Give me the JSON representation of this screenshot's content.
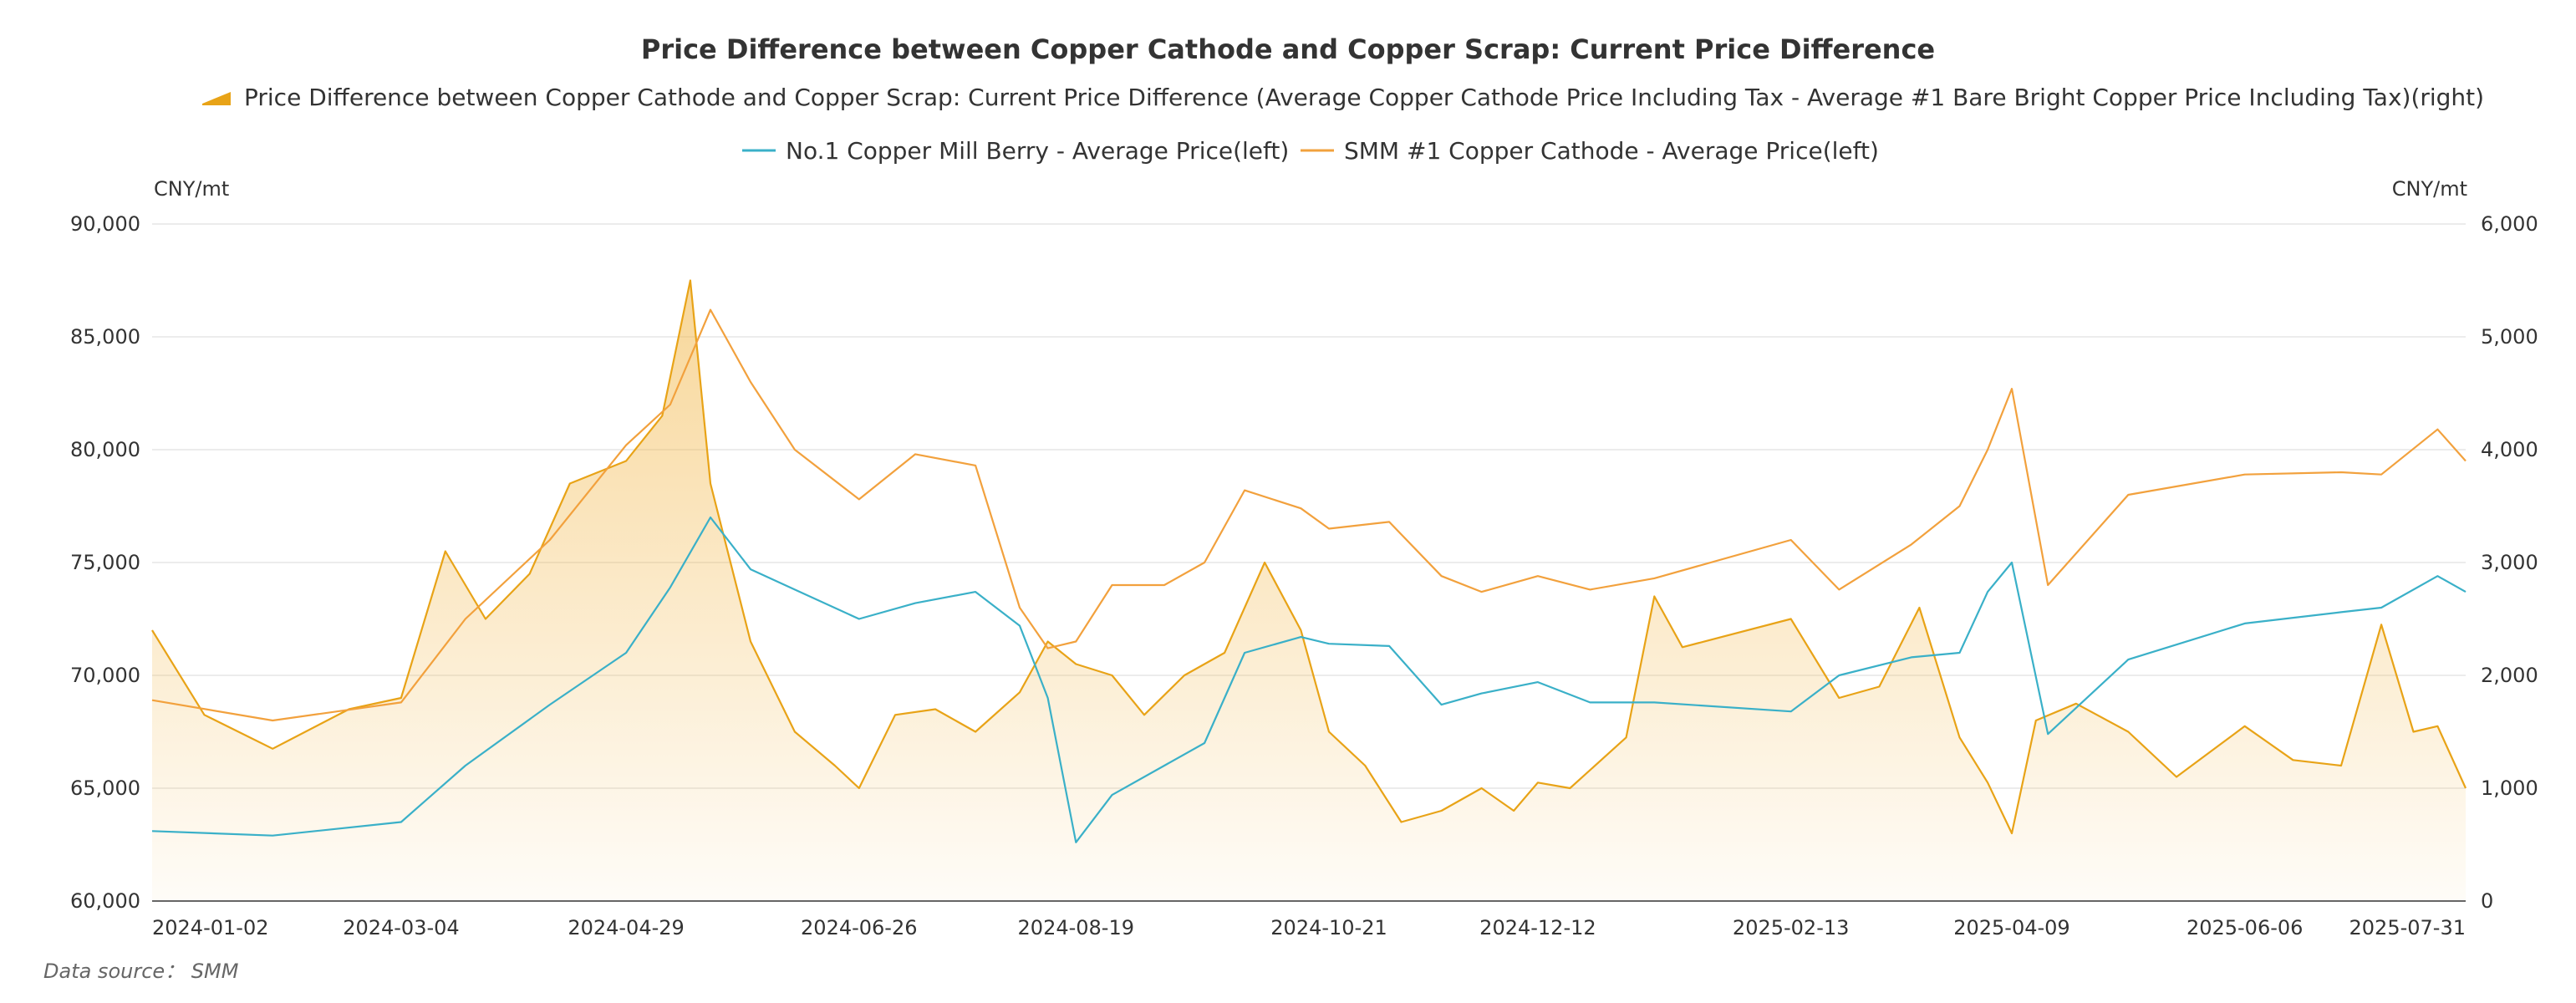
{
  "chart_data": {
    "type": "line",
    "title": "Price Difference between Copper Cathode and Copper Scrap: Current Price Difference",
    "left_axis": {
      "unit": "CNY/mt",
      "ylim": [
        60000,
        90000
      ],
      "ticks": [
        "60,000",
        "65,000",
        "70,000",
        "75,000",
        "80,000",
        "85,000",
        "90,000"
      ]
    },
    "right_axis": {
      "unit": "CNY/mt",
      "ylim": [
        0,
        6000
      ],
      "ticks": [
        "0",
        "1,000",
        "2,000",
        "3,000",
        "4,000",
        "5,000",
        "6,000"
      ]
    },
    "x_tick_labels": [
      "2024-01-02",
      "2024-03-04",
      "2024-04-29",
      "2024-06-26",
      "2024-08-19",
      "2024-10-21",
      "2024-12-12",
      "2025-02-13",
      "2025-04-09",
      "2025-06-06",
      "2025-07-31"
    ],
    "grid": true,
    "legend_position": "top",
    "source": "Data source： SMM",
    "series": [
      {
        "name": "Price Difference between Copper Cathode and Copper Scrap: Current Price Difference (Average Copper Cathode Price Including Tax - Average #1 Bare Bright Copper Price Including Tax)(right)",
        "axis": "right",
        "style": "area",
        "color": "#e8a317",
        "x": [
          "2024-01-02",
          "2024-01-15",
          "2024-02-01",
          "2024-02-20",
          "2024-03-04",
          "2024-03-15",
          "2024-03-25",
          "2024-04-05",
          "2024-04-15",
          "2024-04-29",
          "2024-05-08",
          "2024-05-15",
          "2024-05-20",
          "2024-05-30",
          "2024-06-10",
          "2024-06-20",
          "2024-06-26",
          "2024-07-05",
          "2024-07-15",
          "2024-07-25",
          "2024-08-05",
          "2024-08-12",
          "2024-08-19",
          "2024-08-28",
          "2024-09-05",
          "2024-09-15",
          "2024-09-25",
          "2024-10-05",
          "2024-10-14",
          "2024-10-21",
          "2024-10-30",
          "2024-11-08",
          "2024-11-18",
          "2024-11-28",
          "2024-12-06",
          "2024-12-12",
          "2024-12-20",
          "2025-01-03",
          "2025-01-10",
          "2025-01-17",
          "2025-02-13",
          "2025-02-25",
          "2025-03-07",
          "2025-03-17",
          "2025-03-27",
          "2025-04-03",
          "2025-04-09",
          "2025-04-15",
          "2025-04-25",
          "2025-05-08",
          "2025-05-20",
          "2025-06-06",
          "2025-06-18",
          "2025-06-30",
          "2025-07-10",
          "2025-07-18",
          "2025-07-24",
          "2025-07-31"
        ],
        "values": [
          2400,
          1650,
          1350,
          1700,
          1800,
          3100,
          2500,
          2900,
          3700,
          3900,
          4300,
          5500,
          3700,
          2300,
          1500,
          1200,
          1000,
          1650,
          1700,
          1500,
          1850,
          2300,
          2100,
          2000,
          1650,
          2000,
          2200,
          3000,
          2400,
          1500,
          1200,
          700,
          800,
          1000,
          800,
          1050,
          1000,
          1450,
          2700,
          2250,
          2500,
          1800,
          1900,
          2600,
          1450,
          1050,
          600,
          1600,
          1750,
          1500,
          1100,
          1550,
          1250,
          1200,
          2450,
          1500,
          1550,
          1000
        ]
      },
      {
        "name": "No.1 Copper Mill Berry - Average Price(left)",
        "axis": "left",
        "style": "line",
        "color": "#3ab0c8",
        "x": [
          "2024-01-02",
          "2024-02-01",
          "2024-03-04",
          "2024-03-20",
          "2024-04-10",
          "2024-04-29",
          "2024-05-10",
          "2024-05-20",
          "2024-05-30",
          "2024-06-10",
          "2024-06-26",
          "2024-07-10",
          "2024-07-25",
          "2024-08-05",
          "2024-08-12",
          "2024-08-19",
          "2024-08-28",
          "2024-09-10",
          "2024-09-20",
          "2024-09-30",
          "2024-10-14",
          "2024-10-21",
          "2024-11-05",
          "2024-11-18",
          "2024-11-28",
          "2024-12-12",
          "2024-12-25",
          "2025-01-10",
          "2025-02-13",
          "2025-02-25",
          "2025-03-15",
          "2025-03-27",
          "2025-04-03",
          "2025-04-09",
          "2025-04-18",
          "2025-05-08",
          "2025-06-06",
          "2025-06-30",
          "2025-07-10",
          "2025-07-24",
          "2025-07-31"
        ],
        "values": [
          63100,
          62900,
          63500,
          66000,
          68700,
          71000,
          73900,
          77000,
          74700,
          73800,
          72500,
          73200,
          73700,
          72200,
          69000,
          62600,
          64700,
          66000,
          67000,
          71000,
          71700,
          71400,
          71300,
          68700,
          69200,
          69700,
          68800,
          68800,
          68400,
          70000,
          70800,
          71000,
          73700,
          75000,
          67400,
          70700,
          72300,
          72800,
          73000,
          74400,
          73700
        ]
      },
      {
        "name": "SMM #1 Copper Cathode - Average Price(left)",
        "axis": "left",
        "style": "line",
        "color": "#f2a13d",
        "x": [
          "2024-01-02",
          "2024-02-01",
          "2024-03-04",
          "2024-03-20",
          "2024-04-10",
          "2024-04-29",
          "2024-05-10",
          "2024-05-20",
          "2024-05-30",
          "2024-06-10",
          "2024-06-26",
          "2024-07-10",
          "2024-07-25",
          "2024-08-05",
          "2024-08-12",
          "2024-08-19",
          "2024-08-28",
          "2024-09-10",
          "2024-09-20",
          "2024-09-30",
          "2024-10-14",
          "2024-10-21",
          "2024-11-05",
          "2024-11-18",
          "2024-11-28",
          "2024-12-12",
          "2024-12-25",
          "2025-01-10",
          "2025-02-13",
          "2025-02-25",
          "2025-03-15",
          "2025-03-27",
          "2025-04-03",
          "2025-04-09",
          "2025-04-18",
          "2025-05-08",
          "2025-06-06",
          "2025-06-30",
          "2025-07-10",
          "2025-07-24",
          "2025-07-31"
        ],
        "values": [
          68900,
          68000,
          68800,
          72500,
          76000,
          80200,
          82000,
          86200,
          83000,
          80000,
          77800,
          79800,
          79300,
          73000,
          71200,
          71500,
          74000,
          74000,
          75000,
          78200,
          77400,
          76500,
          76800,
          74400,
          73700,
          74400,
          73800,
          74300,
          76000,
          73800,
          75800,
          77500,
          80000,
          82700,
          74000,
          78000,
          78900,
          79000,
          78900,
          80900,
          79500
        ]
      }
    ]
  }
}
